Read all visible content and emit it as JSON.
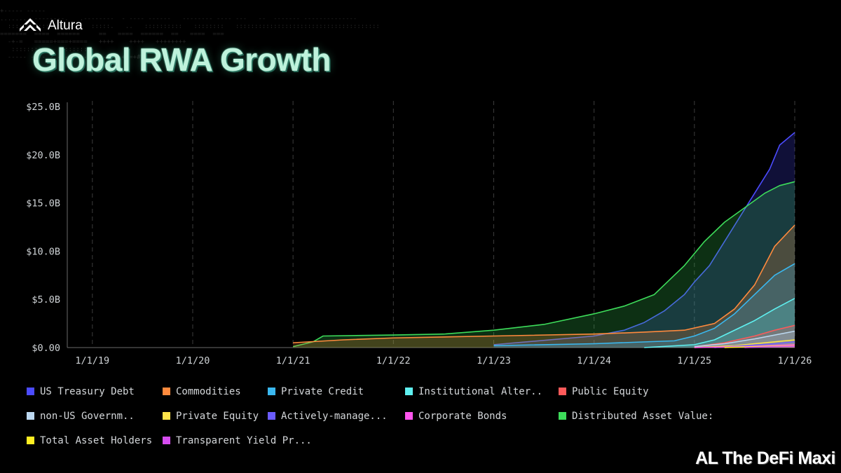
{
  "brand": {
    "name": "Altura",
    "logo_icon": "altura-chevron-logo-icon"
  },
  "chart_data": {
    "type": "area",
    "title": "Global RWA Growth",
    "xlabel": "",
    "ylabel": "",
    "x_tick_labels": [
      "1/1/19",
      "1/1/20",
      "1/1/21",
      "1/1/22",
      "1/1/23",
      "1/1/24",
      "1/1/25",
      "1/1/26"
    ],
    "x_tick_values": [
      2019,
      2020,
      2021,
      2022,
      2023,
      2024,
      2025,
      2026
    ],
    "y_tick_labels": [
      "$0.00",
      "$5.0B",
      "$10.0B",
      "$15.0B",
      "$20.0B",
      "$25.0B"
    ],
    "y_tick_values": [
      0,
      5,
      10,
      15,
      20,
      25
    ],
    "ylim": [
      0,
      25
    ],
    "xlim": [
      2018.75,
      2026.0
    ],
    "grid": "vertical-dashed",
    "legend_position": "bottom",
    "stacked": false,
    "series": [
      {
        "name": "US Treasury Debt",
        "color": "#4b4bff",
        "x": [
          2023.0,
          2024.0,
          2024.3,
          2024.5,
          2024.7,
          2024.9,
          2025.0,
          2025.15,
          2025.3,
          2025.45,
          2025.6,
          2025.75,
          2025.85,
          2026.0
        ],
        "y": [
          0.3,
          1.2,
          1.8,
          2.6,
          3.8,
          5.5,
          6.8,
          8.5,
          11.0,
          13.5,
          16.0,
          18.5,
          21.0,
          22.3
        ]
      },
      {
        "name": "Commodities",
        "color": "#ff8a3d",
        "x": [
          2021.0,
          2021.5,
          2022.0,
          2023.0,
          2024.0,
          2024.5,
          2024.9,
          2025.2,
          2025.4,
          2025.6,
          2025.8,
          2026.0
        ],
        "y": [
          0.5,
          0.8,
          1.0,
          1.2,
          1.4,
          1.6,
          1.8,
          2.5,
          4.0,
          6.5,
          10.5,
          12.7
        ]
      },
      {
        "name": "Private Credit",
        "color": "#3ab8f0",
        "x": [
          2023.0,
          2024.0,
          2024.8,
          2025.0,
          2025.2,
          2025.4,
          2025.6,
          2025.8,
          2026.0
        ],
        "y": [
          0.2,
          0.4,
          0.7,
          1.2,
          2.0,
          3.5,
          5.5,
          7.5,
          8.7
        ]
      },
      {
        "name": "Institutional Alter..",
        "color": "#5ff0f0",
        "x": [
          2024.5,
          2025.0,
          2025.2,
          2025.4,
          2025.6,
          2025.8,
          2026.0
        ],
        "y": [
          0.0,
          0.3,
          0.8,
          1.8,
          2.8,
          4.0,
          5.1
        ]
      },
      {
        "name": "Public Equity",
        "color": "#ff5a5a",
        "x": [
          2025.0,
          2025.3,
          2025.6,
          2025.8,
          2026.0
        ],
        "y": [
          0.1,
          0.5,
          1.2,
          1.8,
          2.3
        ]
      },
      {
        "name": "non-US Governm..",
        "color": "#bcd8f0",
        "x": [
          2025.0,
          2025.3,
          2025.6,
          2025.8,
          2026.0
        ],
        "y": [
          0.1,
          0.4,
          0.9,
          1.3,
          1.7
        ]
      },
      {
        "name": "Private Equity",
        "color": "#ffe44a",
        "x": [
          2025.0,
          2025.4,
          2025.7,
          2026.0
        ],
        "y": [
          0.0,
          0.2,
          0.5,
          0.8
        ]
      },
      {
        "name": "Actively-manage...",
        "color": "#6b5cff",
        "x": [
          2025.2,
          2025.5,
          2025.8,
          2026.0
        ],
        "y": [
          0.0,
          0.2,
          0.4,
          0.6
        ]
      },
      {
        "name": "Corporate Bonds",
        "color": "#ff55ee",
        "x": [
          2025.0,
          2025.5,
          2026.0
        ],
        "y": [
          0.0,
          0.1,
          0.3
        ]
      },
      {
        "name": "Distributed Asset Value:",
        "color": "#3ddc5a",
        "x": [
          2021.0,
          2021.2,
          2021.3,
          2022.0,
          2022.5,
          2023.0,
          2023.5,
          2024.0,
          2024.3,
          2024.6,
          2024.75,
          2024.9,
          2025.1,
          2025.3,
          2025.5,
          2025.7,
          2025.85,
          2026.0
        ],
        "y": [
          0.1,
          0.6,
          1.2,
          1.3,
          1.4,
          1.8,
          2.4,
          3.5,
          4.3,
          5.5,
          7.0,
          8.5,
          11.0,
          13.0,
          14.5,
          16.0,
          16.8,
          17.2
        ]
      },
      {
        "name": "Total Asset Holders",
        "color": "#ffee22",
        "x": [
          2025.3,
          2025.6,
          2026.0
        ],
        "y": [
          0.0,
          0.1,
          0.2
        ]
      },
      {
        "name": "Transparent Yield Pr...",
        "color": "#d64cf0",
        "x": [
          2025.5,
          2025.8,
          2026.0
        ],
        "y": [
          0.0,
          0.1,
          0.15
        ]
      }
    ]
  },
  "watermark": "AL The DeFi Maxi"
}
